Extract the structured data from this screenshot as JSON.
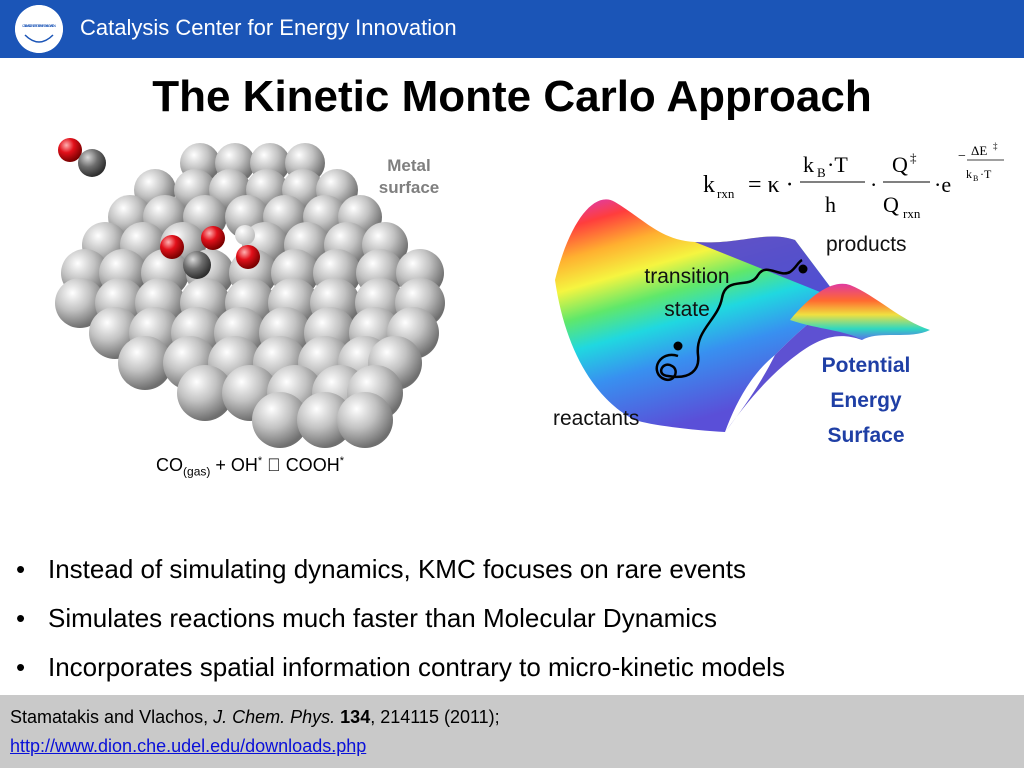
{
  "header": {
    "title": "Catalysis Center for Energy Innovation",
    "logo_text": "CATALYSIS CENTER FOR ENERGY INNOVATION"
  },
  "slide": {
    "title": "The Kinetic Monte Carlo Approach"
  },
  "figure_left": {
    "label": "Metal surface",
    "reaction": {
      "co": "CO",
      "gas": "(gas)",
      "oh": " + OH",
      "star": "*",
      "arrow": "  ",
      "product": "COOH"
    }
  },
  "figure_right": {
    "products": "products",
    "transition_state": "transition state",
    "reactants": "reactants",
    "pes_label": "Potential Energy Surface"
  },
  "formula": {
    "k": "k",
    "rxn": "rxn",
    "eq_kappa": "= κ ·",
    "kB": "k",
    "B": "B",
    "dotT": "·T",
    "h": "h",
    "Q": "Q",
    "ddag": "‡",
    "dot": "·",
    "e": "·e",
    "minus": "−",
    "dE": "ΔE",
    "T": "·T"
  },
  "bullets": [
    "Instead of simulating dynamics, KMC focuses on rare events",
    "Simulates reactions much faster than Molecular Dynamics",
    "Incorporates spatial information contrary to micro-kinetic models"
  ],
  "citation": {
    "authors": "Stamatakis and Vlachos, ",
    "journal": "J. Chem. Phys.",
    "volume": "134",
    "rest": ", 214115 (2011);",
    "url": "http://www.dion.che.udel.edu/downloads.php"
  },
  "colors": {
    "header_bg": "#1b55b7",
    "footer_bg": "#c9c9c9",
    "pes_label": "#1f3fa5",
    "link": "#0a10d8",
    "oxygen": "#e2101a",
    "carbon": "#6e6e6e"
  }
}
